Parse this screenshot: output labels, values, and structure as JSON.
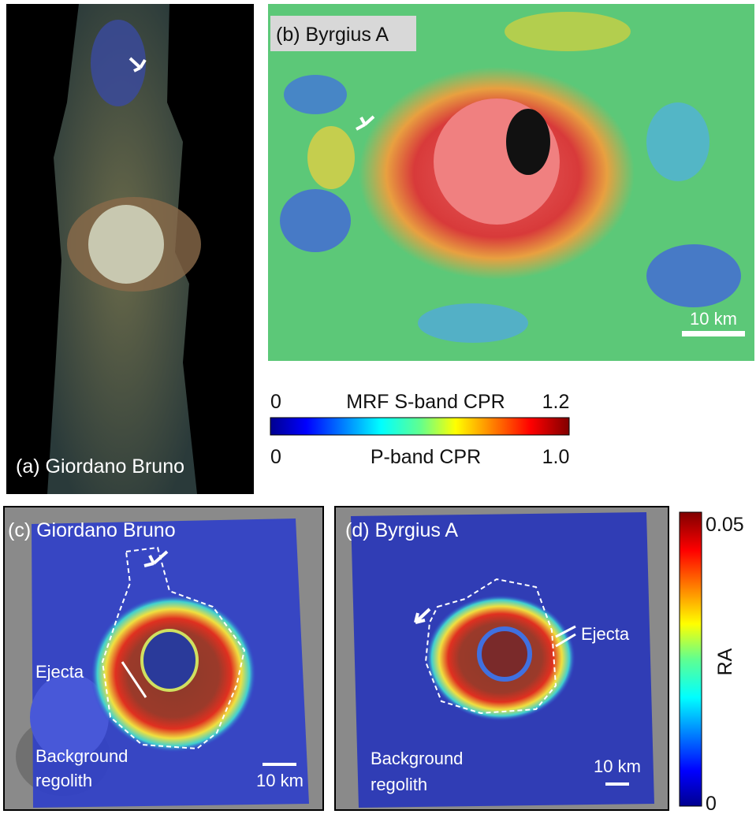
{
  "panels": [
    {
      "label": "(a) Giordano Bruno"
    },
    {
      "label": "(b) Byrgius A",
      "scale_bar": "10 km"
    },
    {
      "label": "(c) Giordano Bruno",
      "ejecta": "Ejecta",
      "background": [
        "Background",
        "regolith"
      ],
      "scale_bar": "10 km"
    },
    {
      "label": "(d) Byrgius A",
      "ejecta": "Ejecta",
      "background": [
        "Background",
        "regolith"
      ],
      "scale_bar": "10 km"
    }
  ],
  "cpr_colorbar": {
    "top_min": 0,
    "top_label": "MRF S-band CPR",
    "top_max": 1.2,
    "bottom_min": 0,
    "bottom_label": "P-band CPR",
    "bottom_max": "1.0"
  },
  "ra_colorbar": {
    "max": 0.05,
    "min": 0,
    "label": "RA"
  }
}
